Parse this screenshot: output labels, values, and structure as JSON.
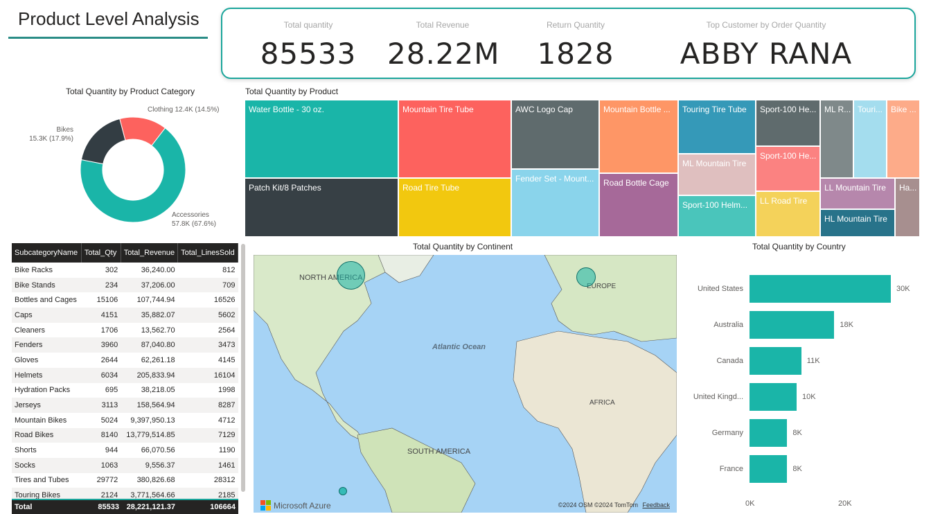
{
  "page": {
    "title": "Product Level Analysis"
  },
  "kpis": [
    {
      "label": "Total quantity",
      "value": "85533"
    },
    {
      "label": "Total Revenue",
      "value": "28.22M"
    },
    {
      "label": "Return Quantity",
      "value": "1828"
    },
    {
      "label": "Top Customer by Order Quantity",
      "value": "ABBY RANA"
    }
  ],
  "chart_data": [
    {
      "type": "pie",
      "title": "Total Quantity by Product Category",
      "variant": "donut",
      "categories": [
        "Accessories",
        "Bikes",
        "Clothing"
      ],
      "values": [
        57800,
        15300,
        12400
      ],
      "labels": [
        "57.8K (67.6%)",
        "15.3K (17.9%)",
        "12.4K (14.5%)"
      ],
      "colors": [
        "#1ab5a8",
        "#333d43",
        "#fd625e"
      ]
    },
    {
      "type": "bar",
      "title": "Total Quantity by Country",
      "orientation": "horizontal",
      "categories": [
        "United States",
        "Australia",
        "Canada",
        "United Kingd...",
        "Germany",
        "France"
      ],
      "values": [
        30000,
        18000,
        11000,
        10000,
        8000,
        8000
      ],
      "value_labels": [
        "30K",
        "18K",
        "11K",
        "10K",
        "8K",
        "8K"
      ],
      "xticks": [
        "0K",
        "20K"
      ],
      "xlim": [
        0,
        30000
      ],
      "color": "#1ab5a8"
    }
  ],
  "treemap": {
    "title": "Total Quantity by Product",
    "items": [
      {
        "label": "Water Bottle - 30 oz.",
        "color": "#1ab5a8"
      },
      {
        "label": "Patch Kit/8 Patches",
        "color": "#374045"
      },
      {
        "label": "Mountain Tire Tube",
        "color": "#fd625e"
      },
      {
        "label": "Road Tire Tube",
        "color": "#f2c80f"
      },
      {
        "label": "AWC Logo Cap",
        "color": "#5f6b6d"
      },
      {
        "label": "Fender Set - Mount...",
        "color": "#8ad4eb"
      },
      {
        "label": "Mountain Bottle ...",
        "color": "#fe9666"
      },
      {
        "label": "Road Bottle Cage",
        "color": "#a66999"
      },
      {
        "label": "Touring Tire Tube",
        "color": "#3599b8"
      },
      {
        "label": "ML Mountain Tire",
        "color": "#dfbfbf"
      },
      {
        "label": "Sport-100 Helm...",
        "color": "#4ac5bb"
      },
      {
        "label": "Sport-100 He...",
        "color": "#5f6b6d"
      },
      {
        "label": "Sport-100 He...",
        "color": "#fb8281"
      },
      {
        "label": "LL Road Tire",
        "color": "#f4d25a"
      },
      {
        "label": "ML R...",
        "color": "#7f898a"
      },
      {
        "label": "Touri...",
        "color": "#a4ddee"
      },
      {
        "label": "Bike ...",
        "color": "#fdab89"
      },
      {
        "label": "LL Mountain Tire",
        "color": "#b687ac"
      },
      {
        "label": "HL Mountain Tire",
        "color": "#28738a"
      },
      {
        "label": "Ha...",
        "color": "#a78f8f"
      }
    ]
  },
  "table": {
    "headers": [
      "SubcategoryName",
      "Total_Qty",
      "Total_Revenue",
      "Total_LinesSold"
    ],
    "rows": [
      [
        "Bike Racks",
        "302",
        "36,240.00",
        "812"
      ],
      [
        "Bike Stands",
        "234",
        "37,206.00",
        "709"
      ],
      [
        "Bottles and Cages",
        "15106",
        "107,744.94",
        "16526"
      ],
      [
        "Caps",
        "4151",
        "35,882.07",
        "5602"
      ],
      [
        "Cleaners",
        "1706",
        "13,562.70",
        "2564"
      ],
      [
        "Fenders",
        "3960",
        "87,040.80",
        "3473"
      ],
      [
        "Gloves",
        "2644",
        "62,261.18",
        "4145"
      ],
      [
        "Helmets",
        "6034",
        "205,833.94",
        "16104"
      ],
      [
        "Hydration Packs",
        "695",
        "38,218.05",
        "1998"
      ],
      [
        "Jerseys",
        "3113",
        "158,564.94",
        "8287"
      ],
      [
        "Mountain Bikes",
        "5024",
        "9,397,950.13",
        "4712"
      ],
      [
        "Road Bikes",
        "8140",
        "13,779,514.85",
        "7129"
      ],
      [
        "Shorts",
        "944",
        "66,070.56",
        "1190"
      ],
      [
        "Socks",
        "1063",
        "9,556.37",
        "1461"
      ],
      [
        "Tires and Tubes",
        "29772",
        "380,826.68",
        "28312"
      ],
      [
        "Touring Bikes",
        "2124",
        "3,771,564.66",
        "2185"
      ]
    ],
    "total": [
      "Total",
      "85533",
      "28,221,121.37",
      "106664"
    ]
  },
  "map": {
    "title": "Total Quantity by Continent",
    "labels": {
      "north_america": "NORTH AMERICA",
      "europe": "EUROPE",
      "africa": "AFRICA",
      "south_america": "SOUTH AMERICA",
      "ocean": "Atlantic Ocean"
    },
    "brand": "Microsoft Azure",
    "attribution": "©2024 OSM  ©2024 TomTom",
    "feedback": "Feedback",
    "bubble_color": "#1ab5a8"
  }
}
